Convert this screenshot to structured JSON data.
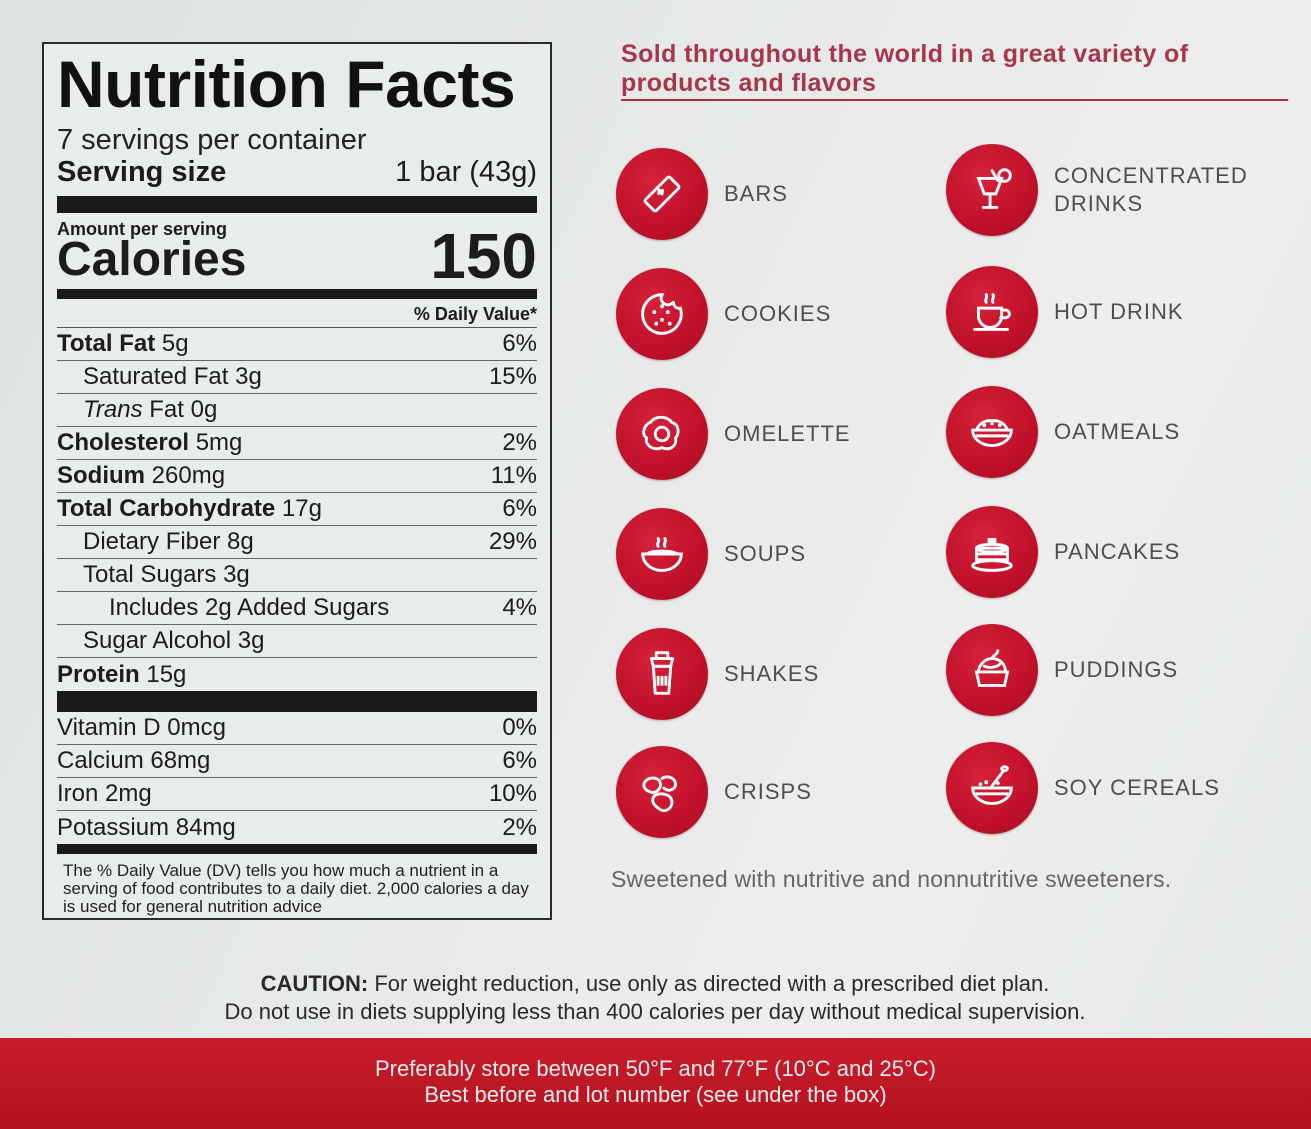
{
  "nutrition": {
    "title": "Nutrition Facts",
    "servings": "7 servings per container",
    "serving_size_label": "Serving size",
    "serving_size_value": "1 bar (43g)",
    "amount_label": "Amount per serving",
    "calories_label": "Calories",
    "calories_value": "150",
    "dv_header": "% Daily Value*",
    "rows": [
      {
        "name": "Total Fat",
        "amount": "5g",
        "dv": "6%"
      },
      {
        "name": "Saturated Fat",
        "amount": "3g",
        "dv": "15%"
      },
      {
        "name": "Trans",
        "name_rest": "Fat",
        "amount": "0g",
        "dv": ""
      },
      {
        "name": "Cholesterol",
        "amount": "5mg",
        "dv": "2%"
      },
      {
        "name": "Sodium",
        "amount": "260mg",
        "dv": "11%"
      },
      {
        "name": "Total Carbohydrate",
        "amount": "17g",
        "dv": "6%"
      },
      {
        "name": "Dietary Fiber",
        "amount": "8g",
        "dv": "29%"
      },
      {
        "name": "Total Sugars",
        "amount": "3g",
        "dv": ""
      },
      {
        "name": "Includes 2g Added Sugars",
        "amount": "",
        "dv": "4%"
      },
      {
        "name": "Sugar Alcohol",
        "amount": "3g",
        "dv": ""
      },
      {
        "name": "Protein",
        "amount": "15g",
        "dv": ""
      }
    ],
    "vitamins": [
      {
        "name": "Vitamin D",
        "amount": "0mcg",
        "dv": "0%"
      },
      {
        "name": "Calcium",
        "amount": "68mg",
        "dv": "6%"
      },
      {
        "name": "Iron",
        "amount": "2mg",
        "dv": "10%"
      },
      {
        "name": "Potassium",
        "amount": "84mg",
        "dv": "2%"
      }
    ],
    "footnote": "The % Daily Value (DV) tells you how much a nutrient in a serving of food contributes to a daily diet. 2,000 calories a day is used for general nutrition advice"
  },
  "headline": "Sold throughout the world in a great variety of products and flavors",
  "products": [
    {
      "label": "BARS",
      "icon": "bar-icon"
    },
    {
      "label": "CONCENTRATED\nDRINKS",
      "icon": "cocktail-icon"
    },
    {
      "label": "COOKIES",
      "icon": "cookie-icon"
    },
    {
      "label": "HOT DRINK",
      "icon": "coffee-cup-icon"
    },
    {
      "label": "OMELETTE",
      "icon": "egg-icon"
    },
    {
      "label": "OATMEALS",
      "icon": "oatmeal-bowl-icon"
    },
    {
      "label": "SOUPS",
      "icon": "soup-bowl-icon"
    },
    {
      "label": "PANCAKES",
      "icon": "pancake-icon"
    },
    {
      "label": "SHAKES",
      "icon": "shaker-icon"
    },
    {
      "label": "PUDDINGS",
      "icon": "pudding-icon"
    },
    {
      "label": "CRISPS",
      "icon": "crisps-icon"
    },
    {
      "label": "SOY CEREALS",
      "icon": "cereal-bowl-icon"
    }
  ],
  "sweetener_note": "Sweetened with nutritive and nonnutritive sweeteners.",
  "caution": {
    "label": "CAUTION:",
    "line1": "For weight reduction, use only as directed with a prescribed diet plan.",
    "line2": "Do not use in diets supplying less than 400 calories per day without medical supervision."
  },
  "storage": {
    "line1": "Preferably store between 50°F and 77°F (10°C and 25°C)",
    "line2": "Best before and lot number (see under the box)"
  },
  "colors": {
    "brand_red": "#c0102a",
    "headline_red": "#a8364a"
  }
}
